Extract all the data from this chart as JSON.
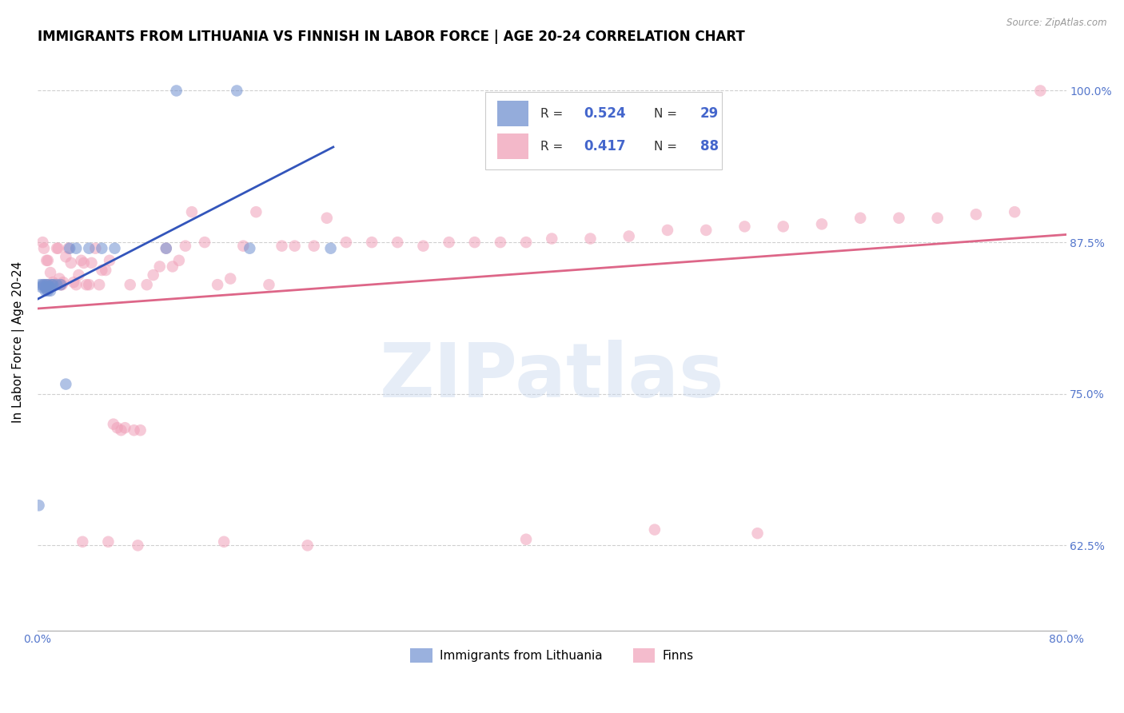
{
  "title": "IMMIGRANTS FROM LITHUANIA VS FINNISH IN LABOR FORCE | AGE 20-24 CORRELATION CHART",
  "source": "Source: ZipAtlas.com",
  "ylabel": "In Labor Force | Age 20-24",
  "xlim": [
    0.0,
    0.8
  ],
  "ylim": [
    0.555,
    1.03
  ],
  "xtick_pos": [
    0.0,
    0.1,
    0.2,
    0.3,
    0.4,
    0.5,
    0.6,
    0.7,
    0.8
  ],
  "xticklabels": [
    "0.0%",
    "",
    "",
    "",
    "",
    "",
    "",
    "",
    "80.0%"
  ],
  "ytick_positions": [
    0.625,
    0.75,
    0.875,
    1.0
  ],
  "ytick_labels": [
    "62.5%",
    "75.0%",
    "87.5%",
    "100.0%"
  ],
  "legend_label_blue": "Immigrants from Lithuania",
  "legend_label_pink": "Finns",
  "blue_color": "#7090d0",
  "pink_color": "#f0a0b8",
  "blue_line_color": "#3355bb",
  "pink_line_color": "#dd6688",
  "background_color": "#ffffff",
  "grid_color": "#d0d0d0",
  "title_fontsize": 12,
  "axis_label_fontsize": 11,
  "tick_fontsize": 10,
  "marker_size": 110,
  "marker_alpha": 0.55,
  "blue_x": [
    0.001,
    0.002,
    0.003,
    0.004,
    0.005,
    0.006,
    0.006,
    0.007,
    0.007,
    0.008,
    0.008,
    0.009,
    0.01,
    0.01,
    0.011,
    0.012,
    0.015,
    0.018,
    0.022,
    0.03,
    0.04,
    0.05,
    0.06,
    0.1,
    0.108,
    0.155,
    0.165,
    0.228,
    0.025
  ],
  "blue_y": [
    0.658,
    0.84,
    0.838,
    0.84,
    0.84,
    0.838,
    0.835,
    0.84,
    0.836,
    0.84,
    0.835,
    0.838,
    0.838,
    0.835,
    0.84,
    0.84,
    0.84,
    0.84,
    0.758,
    0.87,
    0.87,
    0.87,
    0.87,
    0.87,
    1.0,
    1.0,
    0.87,
    0.87,
    0.87
  ],
  "pink_x": [
    0.004,
    0.005,
    0.007,
    0.008,
    0.01,
    0.011,
    0.012,
    0.013,
    0.015,
    0.016,
    0.017,
    0.018,
    0.019,
    0.02,
    0.022,
    0.024,
    0.026,
    0.028,
    0.03,
    0.032,
    0.034,
    0.036,
    0.038,
    0.04,
    0.042,
    0.045,
    0.048,
    0.05,
    0.053,
    0.056,
    0.059,
    0.062,
    0.065,
    0.068,
    0.072,
    0.075,
    0.08,
    0.085,
    0.09,
    0.095,
    0.1,
    0.105,
    0.11,
    0.115,
    0.12,
    0.13,
    0.14,
    0.15,
    0.16,
    0.17,
    0.18,
    0.19,
    0.2,
    0.215,
    0.225,
    0.24,
    0.26,
    0.28,
    0.3,
    0.32,
    0.34,
    0.36,
    0.38,
    0.4,
    0.43,
    0.46,
    0.49,
    0.52,
    0.55,
    0.58,
    0.61,
    0.64,
    0.67,
    0.7,
    0.73,
    0.76,
    0.78,
    0.006,
    0.009,
    0.014,
    0.035,
    0.055,
    0.078,
    0.145,
    0.21,
    0.38,
    0.48,
    0.56
  ],
  "pink_y": [
    0.875,
    0.87,
    0.86,
    0.86,
    0.85,
    0.84,
    0.842,
    0.84,
    0.87,
    0.87,
    0.845,
    0.84,
    0.84,
    0.842,
    0.863,
    0.87,
    0.858,
    0.842,
    0.84,
    0.848,
    0.86,
    0.858,
    0.84,
    0.84,
    0.858,
    0.87,
    0.84,
    0.852,
    0.852,
    0.86,
    0.725,
    0.722,
    0.72,
    0.722,
    0.84,
    0.72,
    0.72,
    0.84,
    0.848,
    0.855,
    0.87,
    0.855,
    0.86,
    0.872,
    0.9,
    0.875,
    0.84,
    0.845,
    0.872,
    0.9,
    0.84,
    0.872,
    0.872,
    0.872,
    0.895,
    0.875,
    0.875,
    0.875,
    0.872,
    0.875,
    0.875,
    0.875,
    0.875,
    0.878,
    0.878,
    0.88,
    0.885,
    0.885,
    0.888,
    0.888,
    0.89,
    0.895,
    0.895,
    0.895,
    0.898,
    0.9,
    1.0,
    0.84,
    0.84,
    0.84,
    0.628,
    0.628,
    0.625,
    0.628,
    0.625,
    0.63,
    0.638,
    0.635
  ],
  "watermark_text": "ZIPatlas",
  "watermark_color": "#c8d8ee",
  "watermark_alpha": 0.45,
  "watermark_fontsize": 68
}
